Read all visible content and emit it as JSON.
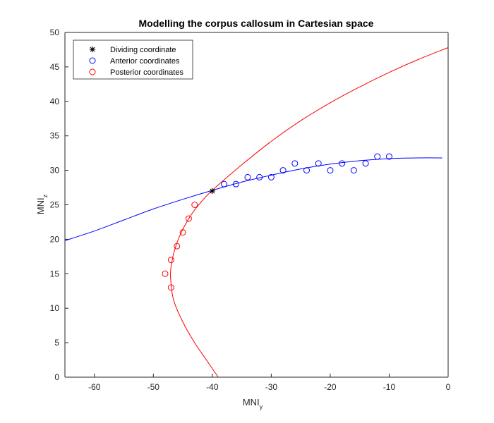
{
  "chart_data": {
    "type": "scatter",
    "title": "Modelling the corpus callosum in Cartesian space",
    "xlabel": {
      "main": "MNI",
      "sub": "y"
    },
    "ylabel": {
      "main": "MNI",
      "sub": "z"
    },
    "xlim": [
      -65,
      0
    ],
    "ylim": [
      0,
      50
    ],
    "xticks": [
      -60,
      -50,
      -40,
      -30,
      -20,
      -10,
      0
    ],
    "yticks": [
      0,
      5,
      10,
      15,
      20,
      25,
      30,
      35,
      40,
      45,
      50
    ],
    "grid": false,
    "legend_position": "top-left",
    "series": [
      {
        "name": "Dividing coordinate",
        "kind": "marker",
        "marker": "asterisk",
        "color": "#000000",
        "points": [
          [
            -40,
            27
          ]
        ]
      },
      {
        "name": "Anterior coordinates",
        "kind": "marker",
        "marker": "circle",
        "color": "#0000ff",
        "points": [
          [
            -38,
            28
          ],
          [
            -36,
            28
          ],
          [
            -34,
            29
          ],
          [
            -32,
            29
          ],
          [
            -30,
            29
          ],
          [
            -28,
            30
          ],
          [
            -26,
            31
          ],
          [
            -24,
            30
          ],
          [
            -22,
            31
          ],
          [
            -20,
            30
          ],
          [
            -18,
            31
          ],
          [
            -16,
            30
          ],
          [
            -14,
            31
          ],
          [
            -12,
            32
          ],
          [
            -10,
            32
          ]
        ]
      },
      {
        "name": "Posterior coordinates",
        "kind": "marker",
        "marker": "circle",
        "color": "#ff0000",
        "points": [
          [
            -43,
            25
          ],
          [
            -44,
            23
          ],
          [
            -45,
            21
          ],
          [
            -46,
            19
          ],
          [
            -47,
            17
          ],
          [
            -48,
            15
          ],
          [
            -47,
            13
          ]
        ]
      },
      {
        "kind": "curve",
        "color": "#0000ff",
        "points": [
          [
            -65,
            19.8
          ],
          [
            -60,
            21.2
          ],
          [
            -55,
            22.8
          ],
          [
            -50,
            24.4
          ],
          [
            -45,
            25.8
          ],
          [
            -40,
            27.1
          ],
          [
            -35,
            28.3
          ],
          [
            -30,
            29.3
          ],
          [
            -25,
            30.2
          ],
          [
            -20,
            30.9
          ],
          [
            -15,
            31.4
          ],
          [
            -10,
            31.7
          ],
          [
            -5,
            31.8
          ],
          [
            -1,
            31.8
          ]
        ]
      },
      {
        "kind": "curve",
        "color": "#ff0000",
        "points": [
          [
            -39,
            0
          ],
          [
            -41,
            2.5
          ],
          [
            -43,
            5
          ],
          [
            -45,
            8
          ],
          [
            -46.5,
            11
          ],
          [
            -47,
            13.5
          ],
          [
            -47,
            16
          ],
          [
            -46,
            19.5
          ],
          [
            -44,
            23
          ],
          [
            -42,
            25.3
          ],
          [
            -40,
            27.1
          ],
          [
            -35,
            30.8
          ],
          [
            -30,
            34.2
          ],
          [
            -25,
            37.2
          ],
          [
            -20,
            39.8
          ],
          [
            -15,
            42.1
          ],
          [
            -10,
            44.2
          ],
          [
            -5,
            46.1
          ],
          [
            0,
            47.8
          ]
        ]
      }
    ]
  }
}
